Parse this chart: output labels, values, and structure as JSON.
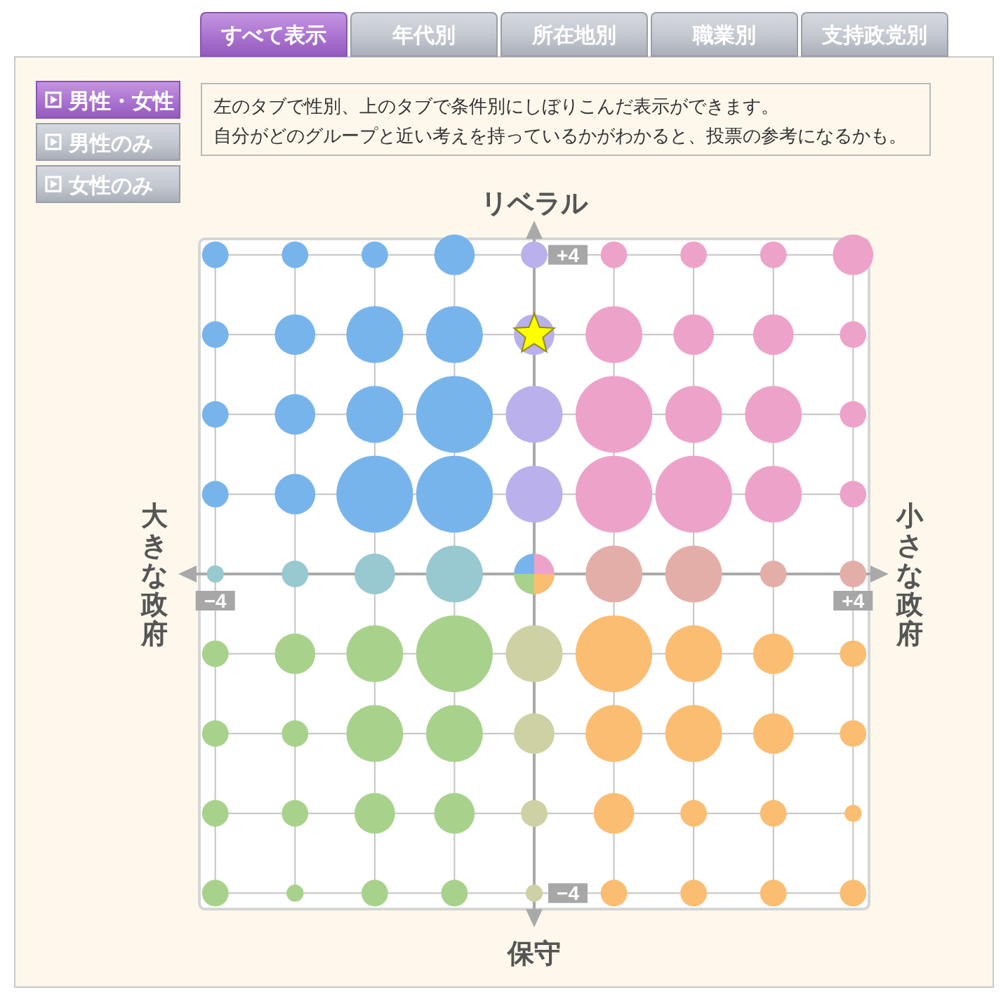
{
  "chart_data": [
    {
      "type": "other",
      "annotations": [
        "すべて表示",
        "年代別",
        "所在地別",
        "職業別",
        "支持政党別"
      ]
    },
    {
      "type": "other",
      "annotations": [
        "男性・女性",
        "男性のみ",
        "女性のみ"
      ]
    },
    {
      "type": "other",
      "annotations": [
        "左のタブで性別、上のタブで条件別にしぼりこんだ表示ができます。",
        "自分がどのグループと近い考えを持っているかがわかると、投票の参考になるかも。"
      ]
    },
    {
      "type": "bubble",
      "annotations": [
        "リベラル",
        "保守",
        "大きな政府",
        "小さな政府"
      ],
      "xlim": [
        -4.2,
        4.2
      ],
      "ylim": [
        -4.2,
        4.2
      ],
      "xticks": [
        {
          "value": -4,
          "label": "−4"
        },
        {
          "value": -3,
          "label": null
        },
        {
          "value": -2,
          "label": null
        },
        {
          "value": -1,
          "label": null
        },
        {
          "value": 0,
          "label": null
        },
        {
          "value": 1,
          "label": null
        },
        {
          "value": 2,
          "label": null
        },
        {
          "value": 3,
          "label": null
        },
        {
          "value": 4,
          "label": "+4"
        }
      ],
      "yticks": [
        {
          "value": -4,
          "label": "−4"
        },
        {
          "value": -3,
          "label": null
        },
        {
          "value": -2,
          "label": null
        },
        {
          "value": -1,
          "label": null
        },
        {
          "value": 0,
          "label": null
        },
        {
          "value": 1,
          "label": null
        },
        {
          "value": 2,
          "label": null
        },
        {
          "value": 3,
          "label": null
        },
        {
          "value": 4,
          "label": "+4"
        }
      ],
      "grid": true,
      "series": [
        {
          "color": "#78b4ec",
          "x": [
            -4,
            -3,
            -2,
            -1,
            -4,
            -3,
            -2,
            -1,
            -4,
            -3,
            -2,
            -1,
            -4,
            -3,
            -2,
            -1
          ],
          "values": [
            4,
            4,
            4,
            4,
            3,
            3,
            3,
            3,
            2,
            2,
            2,
            2,
            1,
            1,
            1,
            1
          ],
          "sizes": [
            0.12,
            0.12,
            0.12,
            0.28,
            0.12,
            0.28,
            0.55,
            0.55,
            0.12,
            0.28,
            0.55,
            1,
            0.12,
            0.28,
            1,
            1
          ]
        },
        {
          "color": "#eda3c9",
          "x": [
            1,
            2,
            3,
            4,
            1,
            2,
            3,
            4,
            1,
            2,
            3,
            4,
            1,
            2,
            3,
            4
          ],
          "values": [
            4,
            4,
            4,
            4,
            3,
            3,
            3,
            3,
            2,
            2,
            2,
            2,
            1,
            1,
            1,
            1
          ],
          "sizes": [
            0.12,
            0.12,
            0.12,
            0.28,
            0.55,
            0.28,
            0.28,
            0.12,
            1,
            0.55,
            0.55,
            0.12,
            1,
            1,
            0.55,
            0.12
          ]
        },
        {
          "color": "#a8d28c",
          "x": [
            -4,
            -3,
            -2,
            -1,
            -4,
            -3,
            -2,
            -1,
            -4,
            -3,
            -2,
            -1,
            -4,
            -3,
            -2,
            -1
          ],
          "values": [
            -1,
            -1,
            -1,
            -1,
            -2,
            -2,
            -2,
            -2,
            -3,
            -3,
            -3,
            -3,
            -4,
            -4,
            -4,
            -4
          ],
          "sizes": [
            0.12,
            0.28,
            0.55,
            1,
            0.12,
            0.12,
            0.55,
            0.55,
            0.12,
            0.12,
            0.28,
            0.28,
            0.12,
            0.05,
            0.12,
            0.12
          ]
        },
        {
          "color": "#fbbd72",
          "x": [
            1,
            2,
            3,
            4,
            1,
            2,
            3,
            4,
            1,
            2,
            3,
            4,
            1,
            2,
            3,
            4
          ],
          "values": [
            -1,
            -1,
            -1,
            -1,
            -2,
            -2,
            -2,
            -2,
            -3,
            -3,
            -3,
            -3,
            -4,
            -4,
            -4,
            -4
          ],
          "sizes": [
            1,
            0.55,
            0.28,
            0.12,
            0.55,
            0.55,
            0.28,
            0.12,
            0.28,
            0.12,
            0.12,
            0.05,
            0.12,
            0.12,
            0.12,
            0.12
          ]
        },
        {
          "color": "#98c8d0",
          "x": [
            -4,
            -3,
            -2,
            -1
          ],
          "values": [
            0,
            0,
            0,
            0
          ],
          "sizes": [
            0.05,
            0.12,
            0.28,
            0.55
          ]
        },
        {
          "color": "#e4aea8",
          "x": [
            1,
            2,
            3,
            4
          ],
          "values": [
            0,
            0,
            0,
            0
          ],
          "sizes": [
            0.55,
            0.55,
            0.12,
            0.12
          ]
        },
        {
          "color": "#bab0ec",
          "x": [
            0,
            0,
            0,
            0
          ],
          "values": [
            4,
            3,
            2,
            1
          ],
          "sizes": [
            0.12,
            0.28,
            0.55,
            0.55
          ]
        },
        {
          "color": "#cdd1a4",
          "x": [
            0,
            0,
            0,
            0
          ],
          "values": [
            -1,
            -2,
            -3,
            -4
          ],
          "sizes": [
            0.55,
            0.28,
            0.12,
            0.05
          ]
        },
        {
          "x": [
            0
          ],
          "values": [
            0
          ],
          "sizes": [
            0.28
          ]
        },
        {
          "type": "scatter",
          "marker": "star",
          "color": "#ffff00",
          "x": [
            0
          ],
          "values": [
            3
          ]
        }
      ]
    }
  ]
}
